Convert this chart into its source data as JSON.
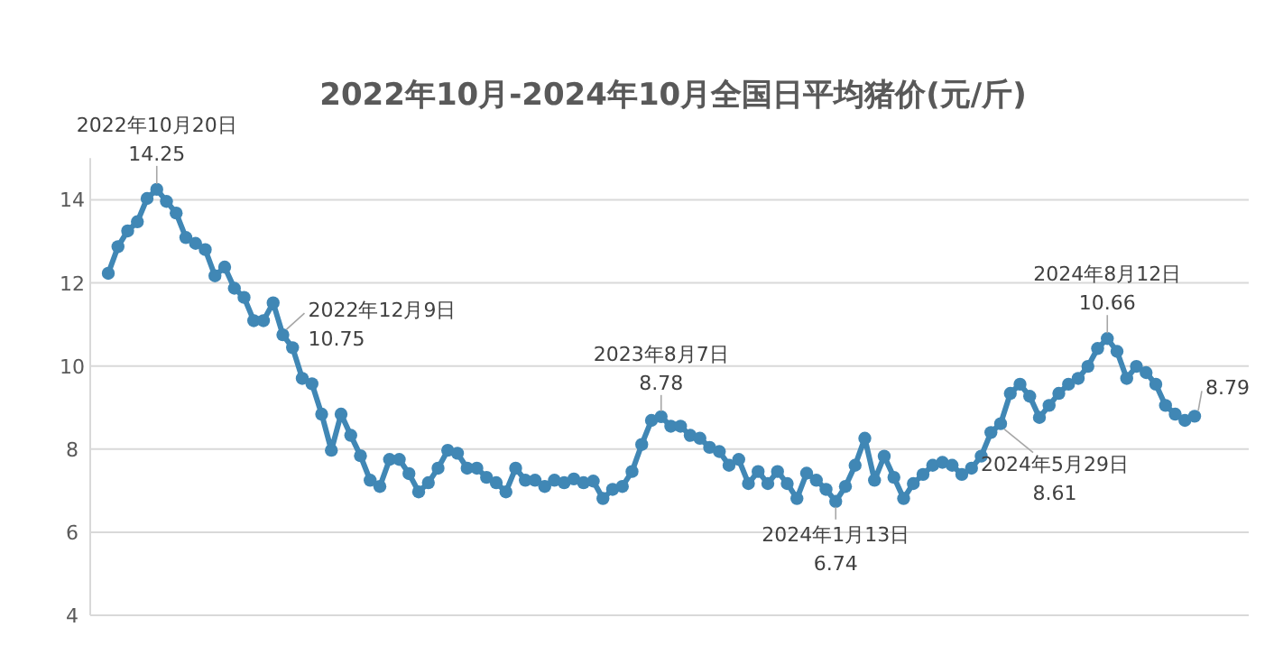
{
  "chart_data": {
    "type": "line",
    "title": "2022年10月-2024年10月全国日平均猪价(元/斤)",
    "categories": [
      null,
      null,
      null,
      null,
      null,
      null,
      null,
      null,
      null,
      null,
      null,
      null,
      null,
      null,
      null,
      null,
      null,
      null,
      null,
      null,
      null,
      null,
      null,
      null,
      null,
      null,
      null,
      null,
      null,
      null,
      null,
      null,
      null,
      null,
      null,
      null,
      null,
      null,
      null,
      null,
      null,
      null,
      null,
      null,
      null,
      null,
      null,
      null,
      null,
      null,
      null,
      null,
      null,
      null,
      null,
      null,
      null,
      null,
      null,
      null,
      null,
      null,
      null,
      null,
      null,
      null,
      null,
      null,
      null,
      null,
      null,
      null,
      null,
      null,
      null,
      null,
      null,
      null,
      null,
      null,
      null,
      null,
      null,
      null,
      null,
      null,
      null,
      null,
      null,
      null,
      null,
      null,
      null,
      null,
      null,
      null,
      null,
      null,
      null,
      null,
      null,
      null,
      null,
      null,
      null,
      null,
      null,
      null,
      null,
      null,
      null,
      null,
      null
    ],
    "series": [
      {
        "color": "#4087b5",
        "values": [
          12.23,
          12.87,
          13.25,
          13.47,
          14.03,
          14.25,
          13.96,
          13.68,
          13.09,
          12.95,
          12.8,
          12.17,
          12.38,
          11.87,
          11.65,
          11.09,
          11.09,
          11.52,
          10.75,
          10.44,
          9.7,
          9.57,
          8.84,
          7.97,
          8.84,
          8.33,
          7.84,
          7.25,
          7.1,
          7.75,
          7.75,
          7.41,
          6.97,
          7.19,
          7.54,
          7.97,
          7.9,
          7.54,
          7.54,
          7.32,
          7.19,
          6.97,
          7.54,
          7.25,
          7.25,
          7.1,
          7.25,
          7.19,
          7.28,
          7.19,
          7.23,
          6.81,
          7.03,
          7.1,
          7.46,
          8.11,
          8.69,
          8.78,
          8.55,
          8.55,
          8.33,
          8.26,
          8.04,
          7.94,
          7.61,
          7.75,
          7.17,
          7.46,
          7.17,
          7.46,
          7.17,
          6.81,
          7.42,
          7.25,
          7.03,
          6.74,
          7.1,
          7.61,
          8.26,
          7.25,
          7.83,
          7.32,
          6.81,
          7.17,
          7.39,
          7.61,
          7.68,
          7.61,
          7.39,
          7.54,
          7.83,
          8.4,
          8.61,
          9.34,
          9.56,
          9.27,
          8.76,
          9.05,
          9.34,
          9.56,
          9.7,
          9.99,
          10.42,
          10.66,
          10.35,
          9.7,
          9.99,
          9.84,
          9.56,
          9.05,
          8.84,
          8.69,
          8.79
        ]
      }
    ],
    "ylim": [
      4,
      15
    ],
    "yticks": [
      4,
      6,
      8,
      10,
      12,
      14
    ],
    "grid": "y",
    "marker": "circle",
    "annotations": [
      {
        "text": "2022年10月20日\n14.25",
        "y": 14.25
      },
      "2022年12月9日\n10.75",
      {
        "text": "2023年8月7日\n8.78",
        "y": 8.78
      },
      {
        "text": "2024年1月13日\n6.74",
        "y": 6.74
      },
      "2024年5月29日\n8.61",
      {
        "text": "2024年8月12日\n10.66",
        "y": 10.66
      },
      "8.79"
    ]
  }
}
